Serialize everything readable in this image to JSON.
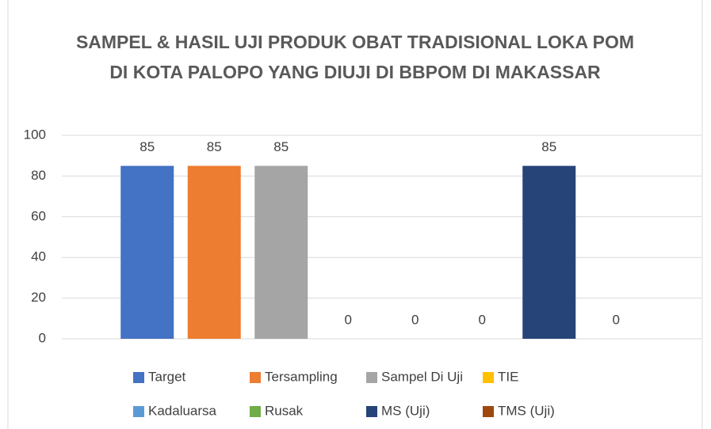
{
  "chart_data": {
    "type": "bar",
    "title": "SAMPEL & HASIL UJI PRODUK OBAT TRADISIONAL LOKA POM DI KOTA PALOPO YANG DIUJI DI BBPOM DI MAKASSAR",
    "categories": [
      null
    ],
    "series": [
      {
        "name": "Target",
        "color": "#4472c4",
        "values": [
          85
        ]
      },
      {
        "name": "Tersampling",
        "color": "#ed7d31",
        "values": [
          85
        ]
      },
      {
        "name": "Sampel Di Uji",
        "color": "#a5a5a5",
        "values": [
          85
        ]
      },
      {
        "name": "TIE",
        "color": "#ffc000",
        "values": [
          0
        ]
      },
      {
        "name": "Kadaluarsa",
        "color": "#5b9bd5",
        "values": [
          0
        ]
      },
      {
        "name": "Rusak",
        "color": "#70ad47",
        "values": [
          0
        ]
      },
      {
        "name": "MS (Uji)",
        "color": "#264478",
        "values": [
          85
        ]
      },
      {
        "name": "TMS (Uji)",
        "color": "#9e480e",
        "values": [
          0
        ]
      }
    ],
    "ylim": [
      0,
      100
    ],
    "yticks": [
      0,
      20,
      40,
      60,
      80,
      100
    ],
    "grid": true,
    "legend": "bottom"
  }
}
